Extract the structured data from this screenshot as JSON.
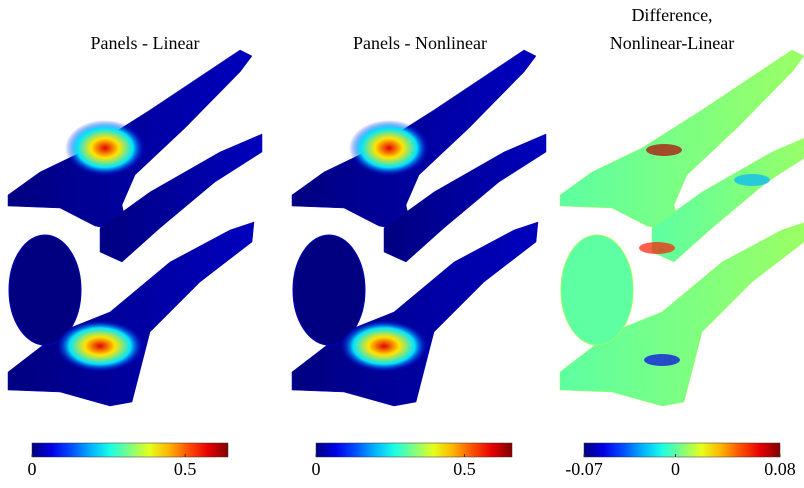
{
  "chart_data": [
    {
      "type": "surface",
      "title": [
        "Panels - Linear"
      ],
      "colormap": "jet",
      "clim": [
        0,
        0.64
      ],
      "cticks": [
        0,
        0.5
      ]
    },
    {
      "type": "surface",
      "title": [
        "Panels - Nonlinear"
      ],
      "colormap": "jet",
      "clim": [
        0,
        0.66
      ],
      "cticks": [
        0,
        0.5
      ]
    },
    {
      "type": "surface",
      "title": [
        "Difference,",
        "Nonlinear-Linear"
      ],
      "colormap": "jet",
      "clim": [
        -0.07,
        0.08
      ],
      "cticks": [
        -0.07,
        0,
        0.08
      ]
    }
  ]
}
